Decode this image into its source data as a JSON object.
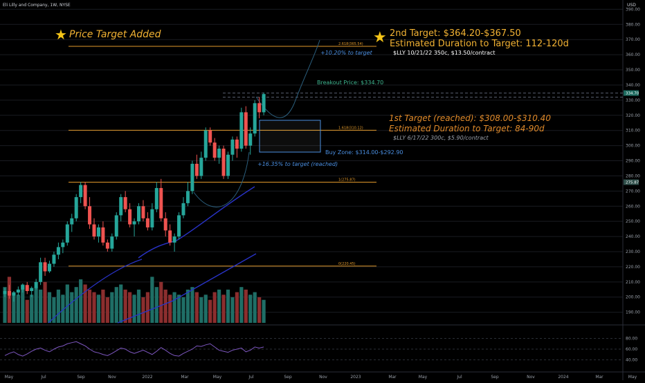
{
  "header": {
    "symbol": "Eli Lilly and Company, 1W, NYSE",
    "currency": "USD"
  },
  "colors": {
    "bg": "#000000",
    "up": "#26a69a",
    "down": "#ef5350",
    "vol_up": "#1f6e66",
    "vol_down": "#8b2e2e",
    "fib": "#e39a2b",
    "sma": "#2933c8",
    "arc": "#2b5f7e",
    "rsi": "#7e57c2",
    "text": "#d1d4dc",
    "muted": "#8a8f9a",
    "accent_green": "#3fb58f",
    "accent_blue": "#4a8ee0",
    "title_gold": "#f2b233",
    "target_orange": "#e08a2a"
  },
  "annotations": {
    "price_target_added": "Price Target Added",
    "second_target": "2nd Target: $364.20-$367.50",
    "second_duration": "Estimated Duration to Target: 112-120d",
    "second_contract": "$LLY 10/21/22 350c, $13.50/contract",
    "first_target": "1st Target (reached): $308.00-$310.40",
    "first_duration": "Estimated Duration to Target: 84-90d",
    "first_contract": "$LLY 6/17/22 300c, $5.90/contract",
    "breakout": "Breakout Price: $334.70",
    "buy_zone": "Buy Zone: $314.00-$292.90",
    "pct_target": "+10.20% to target",
    "pct_reached": "+16.35% to target (reached)"
  },
  "chart_data": {
    "type": "candlestick",
    "ylim": [
      183,
      392
    ],
    "yticks": [
      190,
      200,
      210,
      220,
      230,
      240,
      250,
      260,
      270,
      280,
      290,
      300,
      310,
      320,
      330,
      340,
      350,
      360,
      370,
      380,
      390
    ],
    "xticks": [
      "May",
      "Jul",
      "Sep",
      "Nov",
      "2022",
      "Mar",
      "May",
      "Jul",
      "Sep",
      "Nov",
      "2023",
      "Mar",
      "May",
      "Jul",
      "Sep",
      "Nov",
      "2024",
      "Mar",
      "May"
    ],
    "fib_levels": [
      {
        "label": "2.618(365.54)",
        "value": 365.54
      },
      {
        "label": "1.618(310.12)",
        "value": 310.12
      },
      {
        "label": "1(275.87)",
        "value": 275.87
      },
      {
        "label": "0(220.45)",
        "value": 220.45
      }
    ],
    "price_tags": [
      {
        "label": "334.70",
        "value": 334.7
      },
      {
        "label": "275.87",
        "value": 275.87
      }
    ],
    "candles": [
      [
        202,
        206,
        200,
        204
      ],
      [
        204,
        208,
        199,
        201
      ],
      [
        201,
        204,
        197,
        203
      ],
      [
        203,
        207,
        201,
        205
      ],
      [
        205,
        209,
        203,
        208
      ],
      [
        208,
        210,
        202,
        204
      ],
      [
        204,
        207,
        200,
        206
      ],
      [
        206,
        212,
        205,
        210
      ],
      [
        210,
        226,
        208,
        223
      ],
      [
        223,
        226,
        214,
        217
      ],
      [
        217,
        224,
        216,
        222
      ],
      [
        222,
        230,
        220,
        228
      ],
      [
        228,
        236,
        225,
        233
      ],
      [
        233,
        238,
        229,
        236
      ],
      [
        236,
        250,
        234,
        248
      ],
      [
        248,
        255,
        243,
        252
      ],
      [
        252,
        268,
        250,
        266
      ],
      [
        266,
        276,
        262,
        274
      ],
      [
        274,
        276,
        258,
        260
      ],
      [
        260,
        266,
        245,
        248
      ],
      [
        248,
        252,
        238,
        240
      ],
      [
        240,
        248,
        236,
        246
      ],
      [
        246,
        250,
        234,
        236
      ],
      [
        236,
        238,
        230,
        232
      ],
      [
        232,
        242,
        230,
        240
      ],
      [
        240,
        256,
        238,
        254
      ],
      [
        254,
        268,
        250,
        266
      ],
      [
        266,
        270,
        256,
        258
      ],
      [
        258,
        262,
        246,
        248
      ],
      [
        248,
        252,
        240,
        250
      ],
      [
        250,
        262,
        248,
        260
      ],
      [
        260,
        264,
        250,
        252
      ],
      [
        252,
        256,
        244,
        246
      ],
      [
        246,
        262,
        244,
        258
      ],
      [
        258,
        276,
        256,
        272
      ],
      [
        272,
        278,
        250,
        252
      ],
      [
        252,
        256,
        240,
        244
      ],
      [
        244,
        248,
        234,
        236
      ],
      [
        236,
        242,
        230,
        240
      ],
      [
        240,
        256,
        238,
        254
      ],
      [
        254,
        266,
        252,
        262
      ],
      [
        262,
        276,
        260,
        270
      ],
      [
        270,
        290,
        268,
        288
      ],
      [
        288,
        294,
        278,
        280
      ],
      [
        280,
        296,
        278,
        292
      ],
      [
        292,
        312,
        290,
        310
      ],
      [
        310,
        312,
        300,
        302
      ],
      [
        302,
        305,
        290,
        292
      ],
      [
        292,
        300,
        288,
        298
      ],
      [
        298,
        300,
        278,
        280
      ],
      [
        280,
        296,
        278,
        294
      ],
      [
        294,
        306,
        290,
        304
      ],
      [
        304,
        306,
        292,
        298
      ],
      [
        298,
        325,
        296,
        322
      ],
      [
        322,
        326,
        298,
        300
      ],
      [
        300,
        312,
        294,
        308
      ],
      [
        308,
        330,
        306,
        328
      ],
      [
        328,
        332,
        318,
        322
      ],
      [
        322,
        335,
        320,
        334
      ]
    ],
    "volume": [
      14,
      18,
      12,
      11,
      15,
      9,
      11,
      14,
      13,
      16,
      12,
      10,
      13,
      11,
      15,
      12,
      14,
      17,
      15,
      13,
      12,
      11,
      13,
      10,
      12,
      14,
      15,
      13,
      12,
      11,
      13,
      10,
      12,
      18,
      14,
      16,
      13,
      11,
      12,
      11,
      10,
      13,
      14,
      12,
      10,
      11,
      9,
      12,
      13,
      11,
      13,
      10,
      12,
      14,
      13,
      11,
      12,
      10,
      9
    ],
    "rsi_levels": [
      80,
      60,
      40
    ]
  }
}
